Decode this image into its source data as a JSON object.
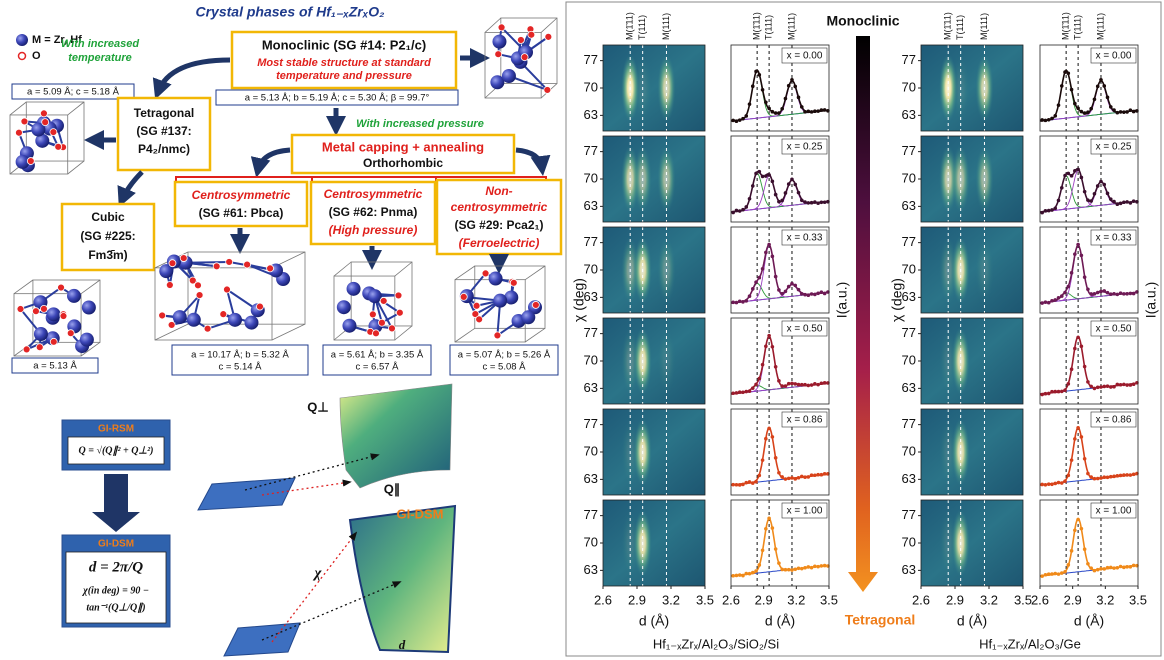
{
  "phases": {
    "title": "Crystal phases of Hf₁₋ₓZrₓO₂",
    "legend": [
      "M = Zr, Hf",
      "O"
    ],
    "temperature_arrow": [
      "With increased",
      "temperature"
    ],
    "pressure_arrow": "With increased pressure",
    "monoclinic": {
      "name": "Monoclinic (SG #14: P2₁/c)",
      "note": [
        "Most stable structure at standard",
        "temperature and pressure"
      ],
      "lattice": [
        "a = 5.13 Å; b = 5.19 Å; c = 5.30 Å; β = 99.7°"
      ]
    },
    "tetragonal": {
      "name": [
        "Tetragonal",
        "(SG #137:",
        "P4₂/nmc)"
      ],
      "lattice": [
        "a = 5.09 Å; c = 5.18 Å"
      ]
    },
    "orthorhombic": {
      "process": "Metal capping + annealing",
      "name": "Orthorhombic"
    },
    "cubic": {
      "name": [
        "Cubic",
        "(SG #225:",
        "Fm3̄m)"
      ],
      "lattice": [
        "a = 5.13 Å"
      ]
    },
    "pbca": {
      "name": [
        "Centrosymmetric",
        "(SG #61: Pbca)"
      ],
      "lattice": [
        "a = 10.17 Å; b = 5.32 Å",
        "c = 5.14 Å"
      ]
    },
    "pnma": {
      "name": [
        "Centrosymmetric",
        "(SG #62: Pnma)",
        "(High pressure)"
      ],
      "lattice": [
        "a = 5.61 Å; b = 3.35 Å",
        "c = 6.57 Å"
      ]
    },
    "pca21": {
      "name": [
        "Non-",
        "centrosymmetric",
        "(SG #29: Pca2₁)",
        "(Ferroelectric)"
      ],
      "lattice": [
        "a = 5.07 Å; b = 5.26 Å",
        "c = 5.08 Å"
      ]
    }
  },
  "method": {
    "rsm_title": "GI-RSM",
    "rsm_formula": "Q = √(Q∥² + Q⊥²)",
    "dsm_title": "GI-DSM",
    "dsm_formula": [
      "d = 2π/Q",
      "χ(in deg) = 90 −",
      "tan⁻¹(Q⊥/Q∥)"
    ],
    "rsm_axes": [
      "Q⊥",
      "Q∥"
    ],
    "dsm_label": "GI-DSM",
    "dsm_axes": [
      "χ",
      "d"
    ]
  },
  "xrd_panel": {
    "xlim": [
      2.6,
      3.5
    ],
    "xticks": [
      2.6,
      2.9,
      3.2,
      3.5
    ],
    "ylim": [
      59,
      81
    ],
    "yticks": [
      77,
      70,
      63
    ],
    "x_label": "d (Å)",
    "y_label": "χ (deg)",
    "intensity_label": "I(a.u.)",
    "colorbar": {
      "top": "Monoclinic",
      "bottom": "Tetragonal"
    },
    "reference_peaks": [
      {
        "label": "M(1̄11)",
        "d": 2.84
      },
      {
        "label": "T(111)",
        "d": 2.95
      },
      {
        "label": "M(111)",
        "d": 3.16
      }
    ],
    "compositions": [
      "x = 0.00",
      "x = 0.25",
      "x = 0.33",
      "x = 0.50",
      "x = 0.86",
      "x = 1.00"
    ],
    "samples": [
      "Hf₁₋ₓZrₓ/Al₂O₃/SiO₂/Si",
      "Hf₁₋ₓZrₓ/Al₂O₃/Ge"
    ]
  }
}
